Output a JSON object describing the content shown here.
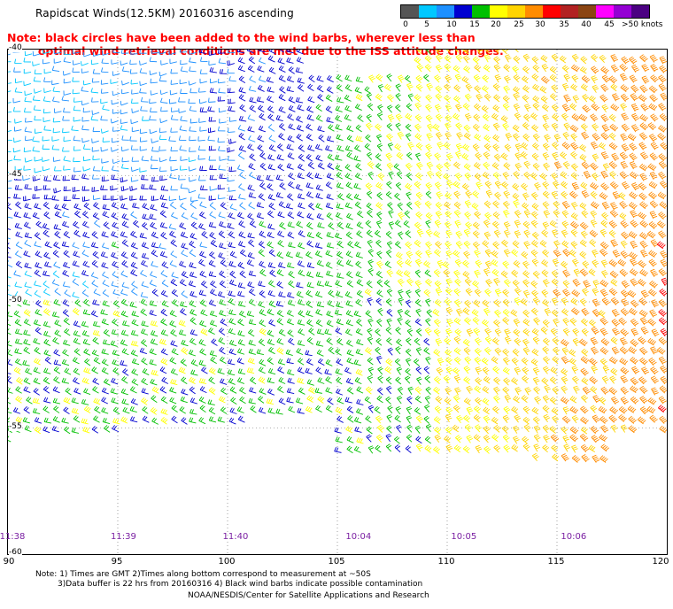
{
  "title": "Rapidscat Winds(12.5KM) 20160316 ascending",
  "scale": {
    "colors": [
      "#555555",
      "#00c8ff",
      "#1e90ff",
      "#0000d0",
      "#00c000",
      "#ffff00",
      "#ffd400",
      "#ff8c00",
      "#ff0000",
      "#b22222",
      "#8b4513",
      "#ff00ff",
      "#9400d3",
      "#4b0082"
    ],
    "labels": [
      "0",
      "5",
      "10",
      "15",
      "20",
      "25",
      "30",
      "35",
      "40",
      "45",
      ">50 knots"
    ],
    "units": "knots"
  },
  "note": "Note: black circles have been added to the wind barbs, wherever less than\n        optimal wind retrieval conditions are met due to the ISS attitude changes.",
  "map": {
    "lat_labels": [
      "-40",
      "-45",
      "-50",
      "-55",
      "-60"
    ],
    "lon_labels": [
      "90",
      "95",
      "100",
      "105",
      "110",
      "115",
      "120"
    ],
    "lat_range": [
      -60,
      -40
    ],
    "lon_range": [
      90,
      120
    ],
    "times": [
      {
        "label": "11:38",
        "lon": 90.2
      },
      {
        "label": "11:39",
        "lon": 95.3
      },
      {
        "label": "11:40",
        "lon": 100.4
      },
      {
        "label": "10:04",
        "lon": 106.0
      },
      {
        "label": "10:05",
        "lon": 110.8
      },
      {
        "label": "10:06",
        "lon": 115.8
      }
    ]
  },
  "footer": {
    "line1": "Note: 1) Times are GMT 2)Times along bottom correspond to measurement at ~50S",
    "line2": "3)Data buffer is 22 hrs from 20160316 4) Black wind barbs indicate possible contamination",
    "line3": "NOAA/NESDIS/Center for Satellite Applications and Research"
  }
}
